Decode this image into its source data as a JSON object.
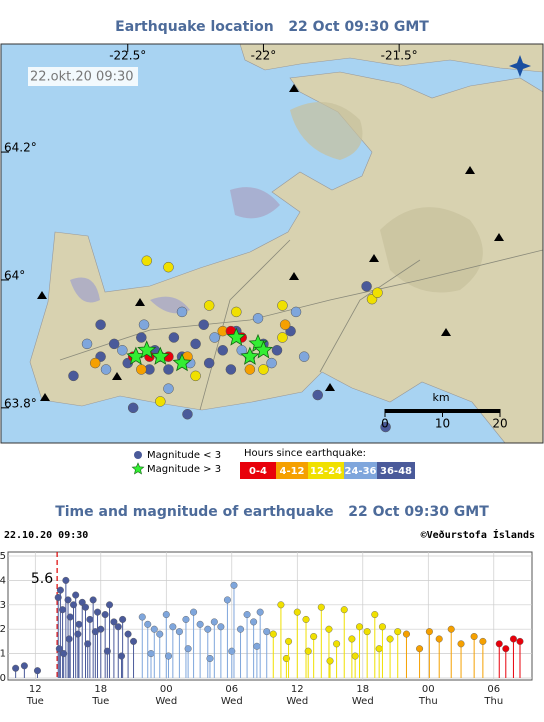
{
  "chart_data": [
    {
      "type": "map",
      "title": "Earthquake location   22 Oct 09:30 GMT",
      "timestamp": "22.okt.20 09:30",
      "xlim": [
        -22.967,
        -20.97
      ],
      "ylim": [
        63.745,
        64.369
      ],
      "xticks": [
        {
          "value": -22.5,
          "label": "-22.5°"
        },
        {
          "value": -22,
          "label": "-22°"
        },
        {
          "value": -21.5,
          "label": "-21.5°"
        }
      ],
      "yticks": [
        {
          "value": 64.2,
          "label": "64.2°"
        },
        {
          "value": 64,
          "label": "64°"
        },
        {
          "value": 63.8,
          "label": "63.8°"
        }
      ],
      "marker_legend": [
        {
          "label": "Magnitude < 3",
          "color": "#4a5a9a"
        },
        {
          "label": "Magnitude > 3",
          "color": "#33ee33"
        }
      ],
      "legend_title": "Hours since earthquake:",
      "series": [
        {
          "name": "0-4",
          "color": "#e8000b",
          "lon": [
            -22.48,
            -22.42,
            -22.12,
            -22.08,
            -22.35
          ],
          "lat": [
            63.88,
            63.88,
            63.92,
            63.91,
            63.88
          ]
        },
        {
          "name": "4-12",
          "color": "#f5a000",
          "lon": [
            -22.45,
            -22.62,
            -22.15,
            -22.05,
            -21.92,
            -22.28
          ],
          "lat": [
            63.86,
            63.87,
            63.92,
            63.86,
            63.93,
            63.88
          ]
        },
        {
          "name": "12-24",
          "color": "#f0e000",
          "lon": [
            -22.43,
            -22.35,
            -22.25,
            -22.1,
            -22,
            -21.93,
            -22.38,
            -21.6,
            -21.58,
            -22.2,
            -21.93
          ],
          "lat": [
            64.03,
            64.02,
            63.85,
            63.95,
            63.86,
            63.91,
            63.81,
            63.97,
            63.98,
            63.96,
            63.96
          ]
        },
        {
          "name": "24-36",
          "color": "#7fa6dc",
          "lon": [
            -22.52,
            -22.38,
            -22.27,
            -22.18,
            -22.08,
            -22.02,
            -21.97,
            -22.44,
            -22.3,
            -22.58,
            -21.85,
            -22.65,
            -22.35,
            -21.88
          ],
          "lat": [
            63.89,
            63.88,
            63.87,
            63.91,
            63.89,
            63.94,
            63.87,
            63.93,
            63.95,
            63.86,
            63.88,
            63.9,
            63.83,
            63.95
          ]
        },
        {
          "name": "36-48",
          "color": "#4a5a9a",
          "lon": [
            -22.6,
            -22.55,
            -22.5,
            -22.45,
            -22.4,
            -22.35,
            -22.3,
            -22.25,
            -22.2,
            -22.15,
            -22.1,
            -22.05,
            -22,
            -21.95,
            -22.42,
            -22.33,
            -22.22,
            -22.12,
            -21.9,
            -22.7,
            -21.8,
            -22.48,
            -22.28,
            -22.6,
            -21.62,
            -21.55
          ],
          "lat": [
            63.88,
            63.9,
            63.87,
            63.91,
            63.89,
            63.86,
            63.88,
            63.9,
            63.87,
            63.89,
            63.92,
            63.88,
            63.9,
            63.89,
            63.86,
            63.91,
            63.93,
            63.86,
            63.92,
            63.85,
            63.82,
            63.8,
            63.79,
            63.93,
            63.99,
            63.77
          ]
        }
      ],
      "stars": {
        "lon": [
          -22.47,
          -22.43,
          -22.38,
          -22.3,
          -22.1,
          -22.02,
          -22,
          -22.05
        ],
        "lat": [
          63.88,
          63.89,
          63.88,
          63.87,
          63.91,
          63.9,
          63.89,
          63.88
        ]
      },
      "scale_unit": "km",
      "scale_ticks": [
        0,
        10,
        20
      ]
    },
    {
      "type": "stem",
      "title": "Time and magnitude of earthquake   22 Oct 09:30 GMT",
      "date_label": "22.10.20 09:30",
      "credit": "©Veðurstofa Íslands",
      "xlim": [
        9.5,
        57.5
      ],
      "ylim": [
        0,
        5
      ],
      "yticks": [
        0,
        1,
        2,
        3,
        4,
        5
      ],
      "xticks": [
        12,
        18,
        {
          "value": 24,
          "label": "00"
        },
        {
          "value": 30,
          "label": "06"
        },
        {
          "value": 36,
          "label": "12"
        },
        {
          "value": 42,
          "label": "18"
        },
        {
          "value": 48,
          "label": "00"
        },
        {
          "value": 54,
          "label": "06"
        }
      ],
      "xtick_days": [
        "Tue",
        "Tue",
        "Wed",
        "Wed",
        "Wed",
        "Wed",
        "Thu",
        "Thu"
      ],
      "grid": true,
      "mainshock": {
        "x": 14.0,
        "magnitude": 5.6
      },
      "series": [
        {
          "color": "#4a5a9a",
          "x": [
            10.2,
            11,
            12.2,
            14.1,
            14.2,
            14.3,
            14.5,
            14.6,
            14.8,
            15,
            15.1,
            15.2,
            15.5,
            15.7,
            15.9,
            16,
            16.3,
            16.6,
            16.8,
            17,
            17.3,
            17.5,
            17.7,
            18,
            18.4,
            18.6,
            18.8,
            19.2,
            19.6,
            19.9,
            20,
            20.5,
            21
          ],
          "values": [
            0.4,
            0.5,
            0.3,
            3.3,
            1.2,
            3.6,
            2.8,
            1,
            4,
            3.2,
            1.6,
            2.5,
            3,
            3.4,
            1.8,
            2.2,
            3.1,
            2.9,
            1.4,
            2.4,
            3.2,
            1.9,
            2.7,
            2,
            2.6,
            1.1,
            3,
            2.3,
            2.1,
            0.9,
            2.4,
            1.8,
            1.5
          ]
        },
        {
          "color": "#7fa6dc",
          "x": [
            21.8,
            22.3,
            22.6,
            22.9,
            23.4,
            24,
            24.2,
            24.6,
            25.2,
            25.8,
            26,
            26.5,
            27.1,
            27.8,
            28,
            28.4,
            29,
            29.6,
            30,
            30.2,
            30.8,
            31.4,
            32,
            32.3,
            32.6,
            33.2
          ],
          "values": [
            2.5,
            2.2,
            1,
            2,
            1.8,
            2.6,
            0.9,
            2.1,
            1.9,
            2.4,
            1.2,
            2.7,
            2.2,
            2,
            0.8,
            2.3,
            2.1,
            3.2,
            1.1,
            3.8,
            2,
            2.6,
            2.3,
            1.3,
            2.7,
            1.9
          ]
        },
        {
          "color": "#f0e000",
          "x": [
            33.8,
            34.5,
            35,
            35.2,
            36,
            36.8,
            37,
            37.5,
            38.2,
            38.9,
            39,
            39.6,
            40.3,
            41,
            41.3,
            41.7,
            42.4,
            43.1,
            43.5,
            43.8,
            44.5,
            45.2
          ],
          "values": [
            1.8,
            3,
            0.8,
            1.5,
            2.7,
            2.4,
            1.1,
            1.7,
            2.9,
            2,
            0.7,
            1.4,
            2.8,
            1.6,
            0.9,
            2.1,
            1.9,
            2.6,
            1.2,
            2.1,
            1.6,
            1.9
          ]
        },
        {
          "color": "#f5a000",
          "x": [
            46,
            47.2,
            48.1,
            49,
            50.1,
            51,
            52.2,
            53
          ],
          "values": [
            1.8,
            1.2,
            1.9,
            1.6,
            2,
            1.4,
            1.7,
            1.5
          ]
        },
        {
          "color": "#e8000b",
          "x": [
            54.5,
            55.1,
            55.8,
            56.4
          ],
          "values": [
            1.4,
            1.2,
            1.6,
            1.5
          ]
        }
      ]
    }
  ]
}
